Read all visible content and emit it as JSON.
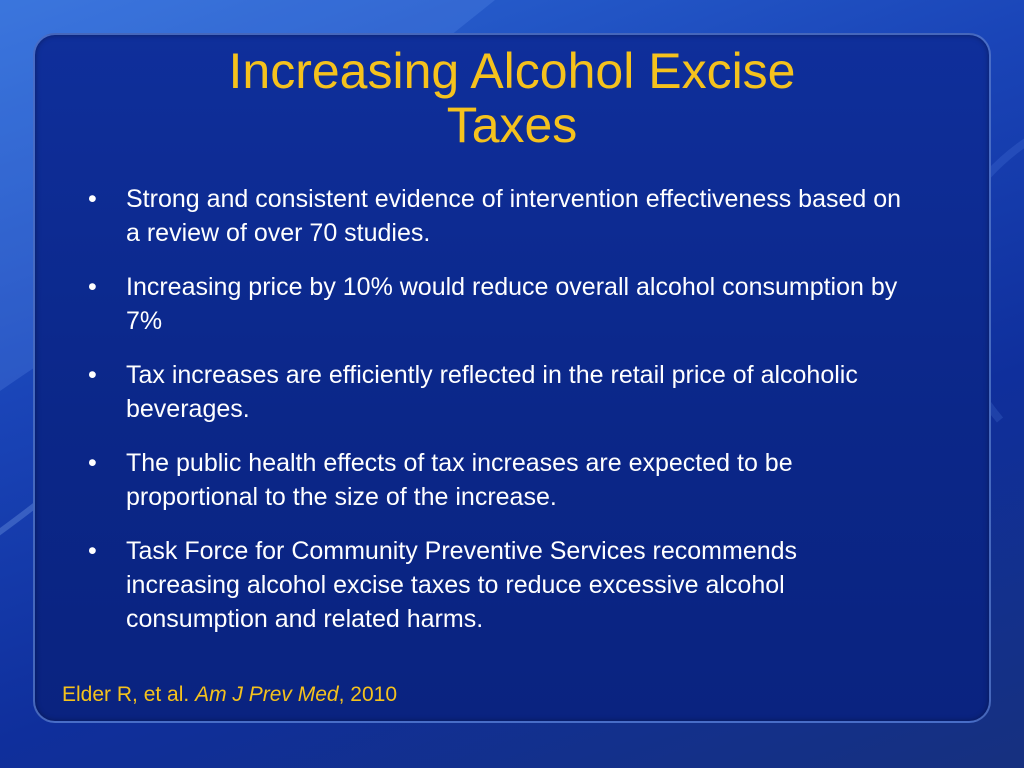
{
  "slide": {
    "title_line1": "Increasing Alcohol Excise",
    "title_line2": "Taxes",
    "bullets": [
      "Strong and consistent evidence of intervention effectiveness based on a review of over 70 studies.",
      "Increasing price by 10% would reduce overall alcohol consumption by 7%",
      "Tax increases are efficiently reflected in the retail price of alcoholic beverages.",
      "The public health effects of tax increases are expected to be proportional to the size of the increase.",
      "Task Force for Community Preventive Services recommends increasing alcohol excise taxes to reduce excessive alcohol consumption and related harms."
    ],
    "bullet_marker": "•",
    "citation": {
      "authors": "Elder R, et al.",
      "journal": "Am J Prev Med",
      "year": ", 2010"
    }
  },
  "colors": {
    "title": "#f5c21d",
    "body_text": "#ffffff",
    "background": "#1a45b8",
    "panel": "#0b2789"
  }
}
